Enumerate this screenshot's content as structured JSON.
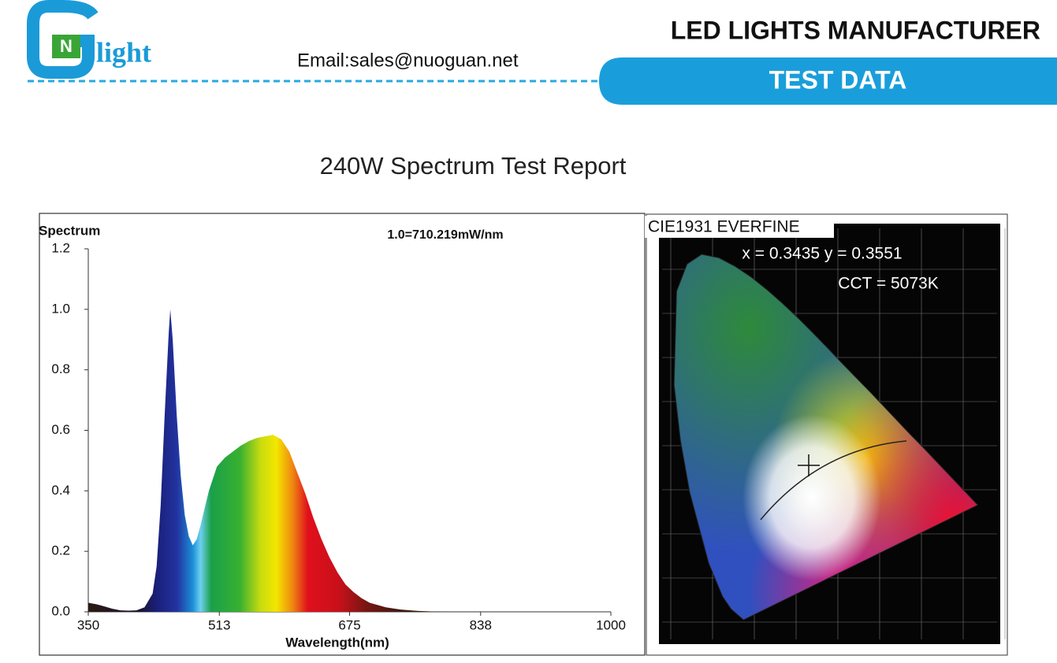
{
  "header": {
    "logo_mark": "N",
    "logo_text": "light",
    "email": "Email:sales@nuoguan.net",
    "company": "LED LIGHTS MANUFACTURER",
    "badge": "TEST DATA"
  },
  "report_title": "240W Spectrum Test Report",
  "chart_data": {
    "type": "area",
    "y_label": "Spectrum",
    "x_label": "Wavelength(nm)",
    "annotation": "1.0=710.219mW/nm",
    "x": [
      350,
      360,
      370,
      380,
      390,
      400,
      410,
      420,
      430,
      435,
      440,
      445,
      450,
      452,
      455,
      460,
      465,
      470,
      475,
      480,
      485,
      490,
      500,
      510,
      520,
      530,
      540,
      550,
      560,
      570,
      580,
      590,
      600,
      610,
      620,
      630,
      640,
      650,
      660,
      670,
      680,
      690,
      700,
      720,
      740,
      760,
      780,
      800,
      850,
      900,
      1000
    ],
    "values": [
      0.03,
      0.025,
      0.018,
      0.01,
      0.005,
      0.004,
      0.005,
      0.015,
      0.06,
      0.15,
      0.35,
      0.65,
      0.92,
      1.0,
      0.9,
      0.65,
      0.45,
      0.32,
      0.25,
      0.22,
      0.24,
      0.29,
      0.4,
      0.48,
      0.51,
      0.53,
      0.55,
      0.565,
      0.575,
      0.58,
      0.585,
      0.57,
      0.53,
      0.46,
      0.39,
      0.31,
      0.24,
      0.18,
      0.13,
      0.09,
      0.065,
      0.045,
      0.03,
      0.015,
      0.007,
      0.003,
      0.001,
      0,
      0,
      0,
      0
    ],
    "xlim": [
      350,
      1000
    ],
    "xticks": [
      350,
      513,
      675,
      838,
      1000
    ],
    "ylim": [
      0,
      1.2
    ],
    "yticks": [
      {
        "value": 0,
        "label": "0.0"
      },
      0.2,
      0.4,
      0.6,
      0.8,
      {
        "value": 1,
        "label": "1.0"
      },
      1.2
    ],
    "grid": false
  },
  "cie": {
    "label": "CIE1931 EVERFINE",
    "coords": "x = 0.3435 y = 0.3551",
    "cct": "CCT = 5073K"
  }
}
